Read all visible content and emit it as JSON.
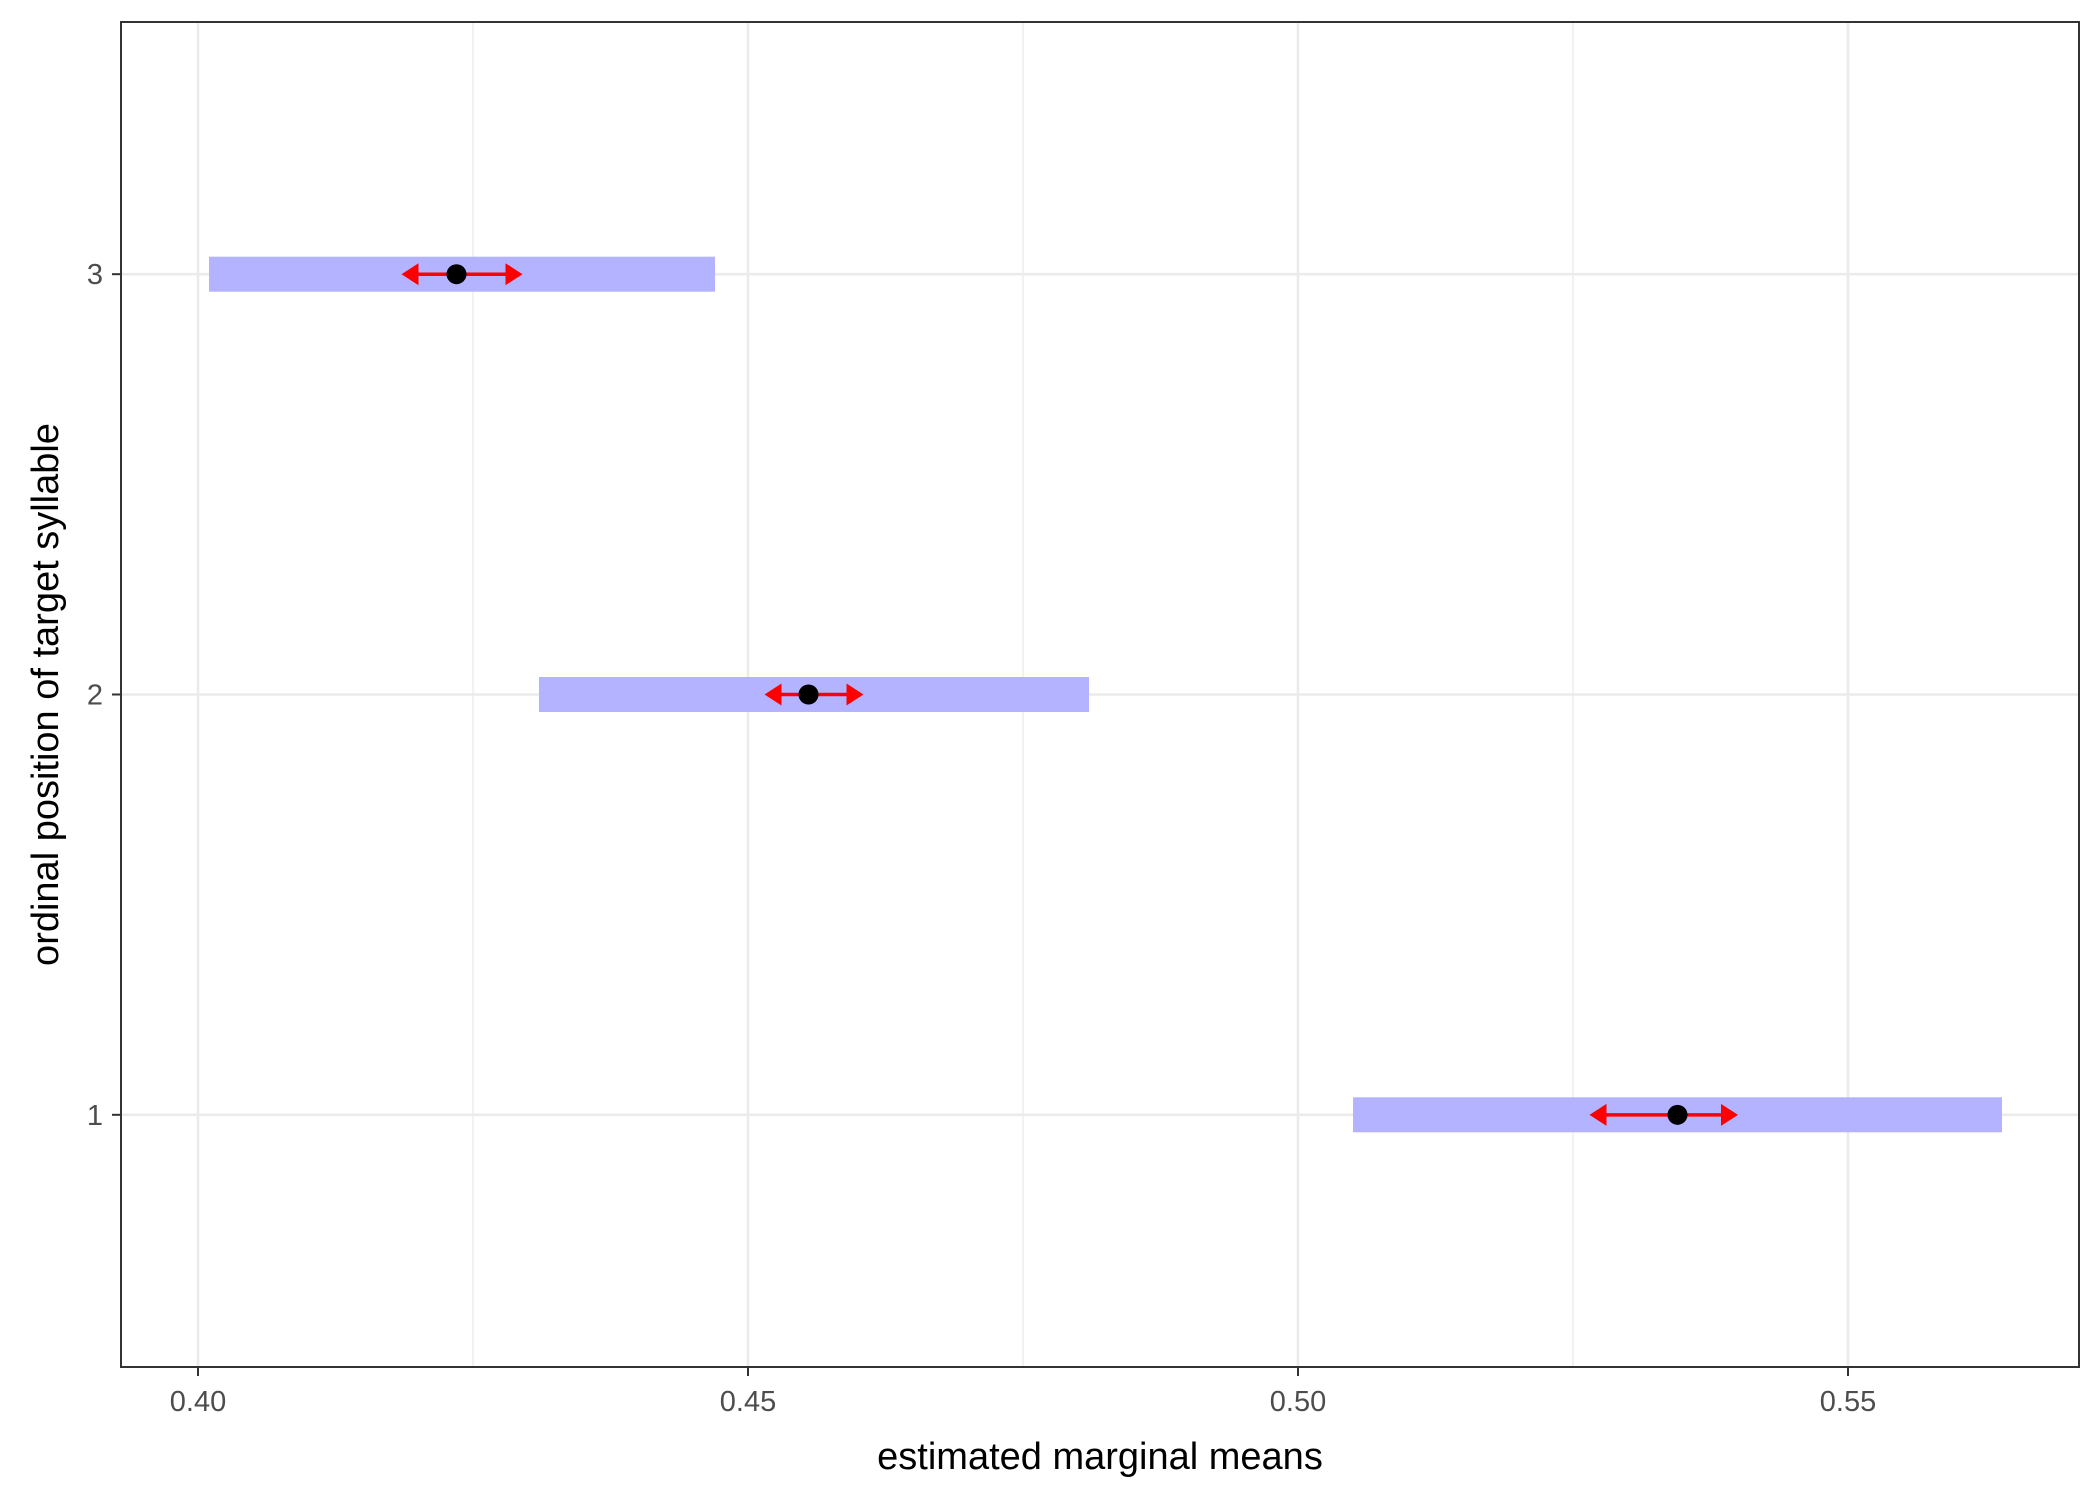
{
  "chart_data": {
    "type": "scatter",
    "title": "",
    "xlabel": "estimated marginal means",
    "ylabel": "ordinal position of target syllable",
    "xlim": [
      0.393,
      0.571
    ],
    "ylim": [
      0.4,
      3.6
    ],
    "x_ticks": [
      0.4,
      0.45,
      0.5,
      0.55
    ],
    "x_tick_labels": [
      "0.40",
      "0.45",
      "0.50",
      "0.55"
    ],
    "x_minor_ticks": [
      0.425,
      0.475,
      0.525
    ],
    "y_ticks": [
      1,
      2,
      3
    ],
    "y_tick_labels": [
      "1",
      "2",
      "3"
    ],
    "grid": true,
    "legend": "none",
    "colors": {
      "confidence_band": "#b3b3ff",
      "comparison_arrow": "#ff0000",
      "point": "#000000",
      "grid": "#ebebeb",
      "panel_border": "#333333"
    },
    "points": [
      {
        "y": 3,
        "emmean": 0.4235,
        "ci_low": 0.401,
        "ci_high": 0.447,
        "arrow_low": 0.4185,
        "arrow_high": 0.4295
      },
      {
        "y": 2,
        "emmean": 0.4555,
        "ci_low": 0.431,
        "ci_high": 0.481,
        "arrow_low": 0.4515,
        "arrow_high": 0.4605
      },
      {
        "y": 1,
        "emmean": 0.5345,
        "ci_low": 0.505,
        "ci_high": 0.564,
        "arrow_low": 0.5265,
        "arrow_high": 0.54
      }
    ]
  }
}
